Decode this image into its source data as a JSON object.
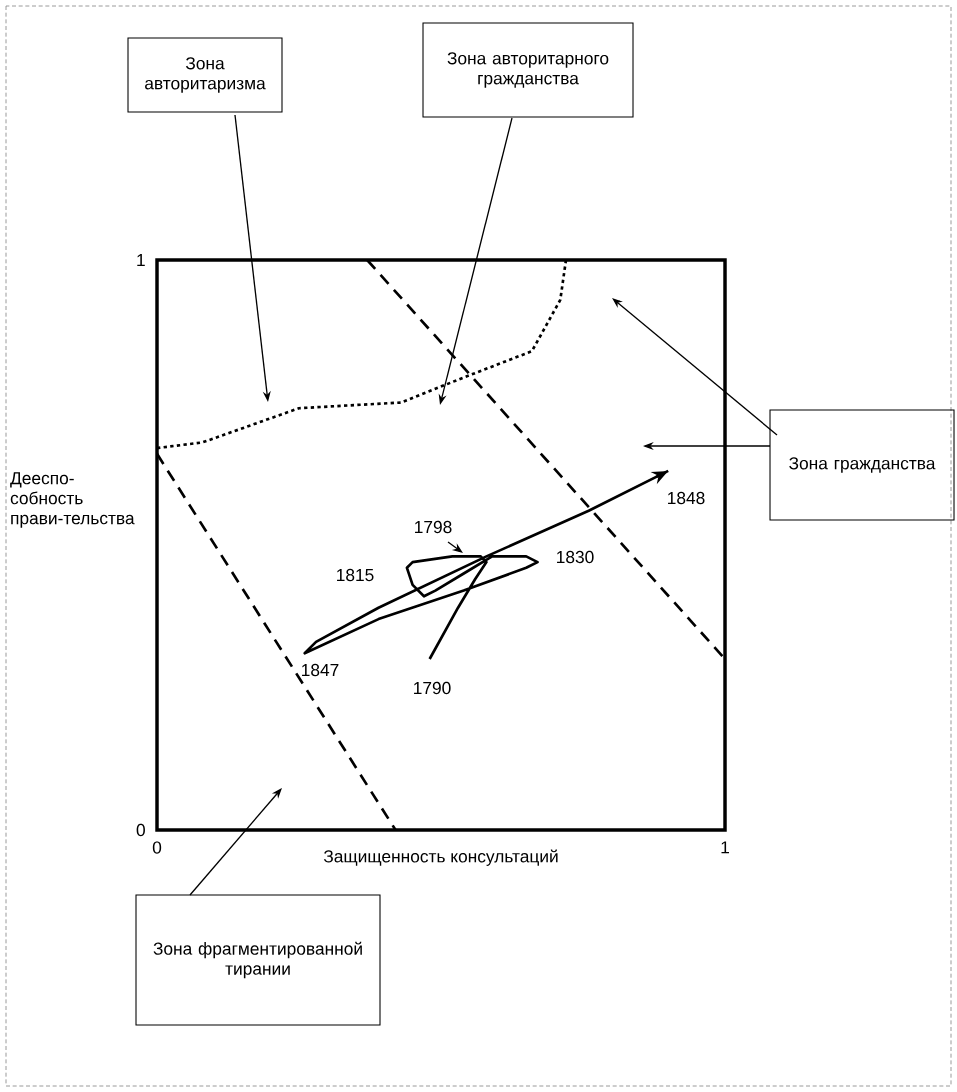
{
  "chart_data": {
    "type": "line",
    "xlabel": "Защищенность консультаций",
    "ylabel": "Дееспо-собность прави-тельства",
    "xlim": [
      0,
      1
    ],
    "ylim": [
      0,
      1
    ],
    "xticks": [
      0,
      1
    ],
    "yticks": [
      0,
      1
    ],
    "series": [
      {
        "color": "#000000",
        "line_style": "solid",
        "x": [
          0.48,
          0.53,
          0.56,
          0.58,
          0.57,
          0.52,
          0.45,
          0.44,
          0.45,
          0.47,
          0.49,
          0.54,
          0.59,
          0.65,
          0.67,
          0.65,
          0.54,
          0.39,
          0.26,
          0.28,
          0.39,
          0.58,
          0.76,
          0.9
        ],
        "values": [
          0.3,
          0.39,
          0.44,
          0.47,
          0.48,
          0.48,
          0.47,
          0.46,
          0.43,
          0.41,
          0.42,
          0.45,
          0.48,
          0.48,
          0.47,
          0.46,
          0.42,
          0.37,
          0.31,
          0.33,
          0.39,
          0.48,
          0.56,
          0.63
        ]
      },
      {
        "color": "#000000",
        "line_style": "dashed",
        "x": [
          0.37,
          1
        ],
        "values": [
          1,
          0.3
        ]
      },
      {
        "color": "#000000",
        "line_style": "dashed",
        "x": [
          0,
          0.42
        ],
        "values": [
          0.66,
          0
        ]
      },
      {
        "color": "#000000",
        "line_style": "dotted",
        "x": [
          0,
          0.08,
          0.25,
          0.43,
          0.53,
          0.66,
          0.71,
          0.72
        ],
        "values": [
          0.67,
          0.68,
          0.74,
          0.75,
          0.79,
          0.84,
          0.93,
          1
        ]
      }
    ],
    "annotations": [
      "Зона авторитаризма",
      "Зона авторитарного гражданства",
      "Зона гражданства",
      "Зона фрагментированной тирании",
      "1798",
      "1815",
      "1830",
      "1847",
      "1790",
      "1848"
    ]
  }
}
